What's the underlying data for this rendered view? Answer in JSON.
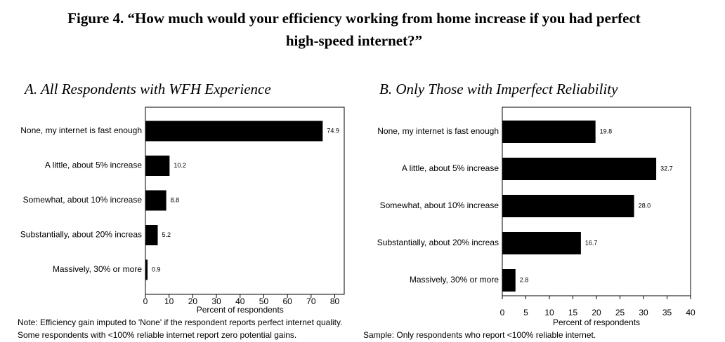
{
  "title": "Figure 4. “How much would your efficiency working from home increase if you had perfect high-speed internet?”",
  "chart_data": [
    {
      "type": "barh",
      "title": "A. All Respondents with WFH Experience",
      "categories": [
        "None, my internet is fast enough",
        "A little, about 5% increase",
        "Somewhat, about 10% increase",
        "Substantially, about 20% increas",
        "Massively, 30% or more"
      ],
      "values": [
        74.9,
        10.2,
        8.8,
        5.2,
        0.9
      ],
      "value_labels": [
        "74.9",
        "10.2",
        "8.8",
        "5.2",
        "0.9"
      ],
      "color": "#000000",
      "xlim": [
        0,
        84
      ],
      "xticks": [
        0,
        10,
        20,
        30,
        40,
        50,
        60,
        70,
        80
      ],
      "xlabel": "Percent of respondents",
      "notes": [
        "Note: Efficiency gain imputed to 'None' if the respondent reports perfect internet quality.",
        "Some respondents with <100% reliable internet report zero potential gains."
      ]
    },
    {
      "type": "barh",
      "title": "B. Only Those with Imperfect Reliability",
      "categories": [
        "None, my internet is fast enough",
        "A little, about 5% increase",
        "Somewhat, about 10% increase",
        "Substantially, about 20% increas",
        "Massively, 30% or more"
      ],
      "values": [
        19.8,
        32.7,
        28.0,
        16.7,
        2.8
      ],
      "value_labels": [
        "19.8",
        "32.7",
        "28.0",
        "16.7",
        "2.8"
      ],
      "color": "#000000",
      "xlim": [
        0,
        40
      ],
      "xticks": [
        0,
        5,
        10,
        15,
        20,
        25,
        30,
        35,
        40
      ],
      "xlabel": "Percent of respondents",
      "notes": [
        "Sample: Only respondents who report <100% reliable internet."
      ]
    }
  ]
}
